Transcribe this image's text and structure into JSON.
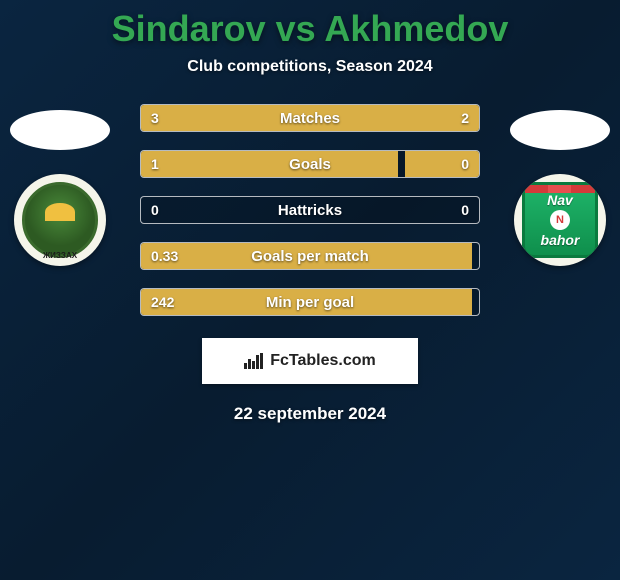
{
  "accent_color": "#34a853",
  "bar_color": "#d9af46",
  "background_gradient": [
    "#0a2540",
    "#081c30",
    "#0a2540"
  ],
  "title": {
    "left": "Sindarov",
    "vs": "vs",
    "right": "Akhmedov"
  },
  "subtitle": "Club competitions, Season 2024",
  "brand_text": "FcTables.com",
  "date": "22 september 2024",
  "stats": [
    {
      "label": "Matches",
      "left_val": "3",
      "right_val": "2",
      "left_pct": 60,
      "right_pct": 40
    },
    {
      "label": "Goals",
      "left_val": "1",
      "right_val": "0",
      "left_pct": 76,
      "right_pct": 22
    },
    {
      "label": "Hattricks",
      "left_val": "0",
      "right_val": "0",
      "left_pct": 0,
      "right_pct": 0
    },
    {
      "label": "Goals per match",
      "left_val": "0.33",
      "right_val": "",
      "left_pct": 98,
      "right_pct": 0
    },
    {
      "label": "Min per goal",
      "left_val": "242",
      "right_val": "",
      "left_pct": 98,
      "right_pct": 0
    }
  ],
  "left_club": {
    "name": "Sogdiana Jizzakh",
    "bottom_text": "ЖИЗЗАХ"
  },
  "right_club": {
    "name": "Navbahor",
    "line1": "Nav",
    "line2": "bahor",
    "circle": "N"
  }
}
